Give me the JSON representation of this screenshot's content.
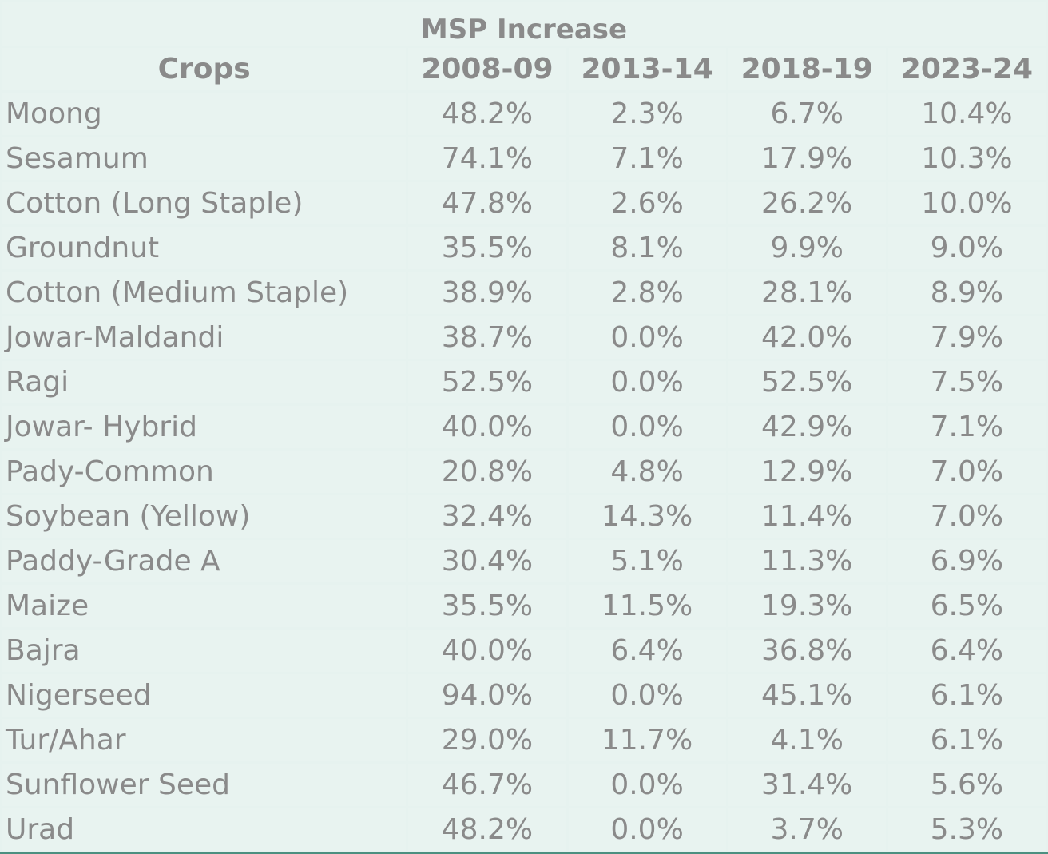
{
  "chart_data": {
    "type": "table",
    "title": "MSP Increase",
    "columns": [
      "Crops",
      "2008-09",
      "2013-14",
      "2018-19",
      "2023-24"
    ],
    "rows": [
      [
        "Moong",
        "48.2%",
        "2.3%",
        "6.7%",
        "10.4%"
      ],
      [
        "Sesamum",
        "74.1%",
        "7.1%",
        "17.9%",
        "10.3%"
      ],
      [
        "Cotton (Long Staple)",
        "47.8%",
        "2.6%",
        "26.2%",
        "10.0%"
      ],
      [
        "Groundnut",
        "35.5%",
        "8.1%",
        "9.9%",
        "9.0%"
      ],
      [
        "Cotton (Medium Staple)",
        "38.9%",
        "2.8%",
        "28.1%",
        "8.9%"
      ],
      [
        "Jowar-Maldandi",
        "38.7%",
        "0.0%",
        "42.0%",
        "7.9%"
      ],
      [
        "Ragi",
        "52.5%",
        "0.0%",
        "52.5%",
        "7.5%"
      ],
      [
        "Jowar- Hybrid",
        "40.0%",
        "0.0%",
        "42.9%",
        "7.1%"
      ],
      [
        "Pady-Common",
        "20.8%",
        "4.8%",
        "12.9%",
        "7.0%"
      ],
      [
        "Soybean (Yellow)",
        "32.4%",
        "14.3%",
        "11.4%",
        "7.0%"
      ],
      [
        "Paddy-Grade A",
        "30.4%",
        "5.1%",
        "11.3%",
        "6.9%"
      ],
      [
        "Maize",
        "35.5%",
        "11.5%",
        "19.3%",
        "6.5%"
      ],
      [
        "Bajra",
        "40.0%",
        "6.4%",
        "36.8%",
        "6.4%"
      ],
      [
        "Nigerseed",
        "94.0%",
        "0.0%",
        "45.1%",
        "6.1%"
      ],
      [
        "Tur/Ahar",
        "29.0%",
        "11.7%",
        "4.1%",
        "6.1%"
      ],
      [
        "Sunflower Seed",
        "46.7%",
        "0.0%",
        "31.4%",
        "5.6%"
      ],
      [
        "Urad",
        "48.2%",
        "0.0%",
        "3.7%",
        "5.3%"
      ]
    ]
  },
  "colors": {
    "cell_background": "#e8f3f0",
    "grid_lines": "#ffffff",
    "text": "#8a8a8a",
    "bottom_rule": "#4c8f80"
  }
}
